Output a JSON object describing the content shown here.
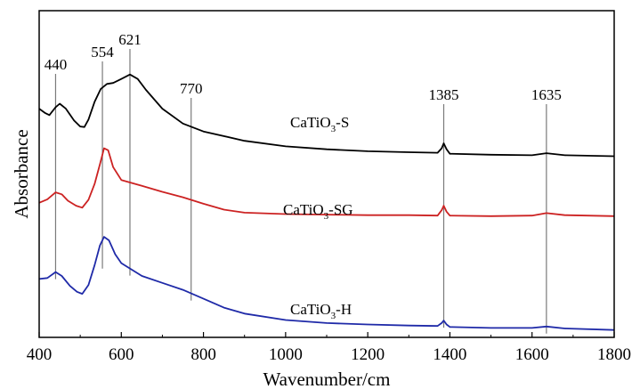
{
  "chart_data": {
    "type": "line",
    "title": "",
    "xlabel": "Wavenumber/cm",
    "ylabel": "Absorbance",
    "xlim": [
      400,
      1800
    ],
    "xticks": [
      400,
      600,
      800,
      1000,
      1200,
      1400,
      1600,
      1800
    ],
    "y_tick_labels": false,
    "grid": false,
    "legend": "none",
    "reference_lines": [
      {
        "x": 440,
        "label": "440"
      },
      {
        "x": 554,
        "label": "554"
      },
      {
        "x": 621,
        "label": "621"
      },
      {
        "x": 770,
        "label": "770"
      },
      {
        "x": 1385,
        "label": "1385"
      },
      {
        "x": 1635,
        "label": "1635"
      }
    ],
    "series": [
      {
        "label_base": "CaTiO",
        "label_sub": "3",
        "label_suffix": "-S",
        "color": "#000000",
        "points": [
          [
            400,
            9.6
          ],
          [
            415,
            9.15
          ],
          [
            425,
            8.95
          ],
          [
            440,
            9.75
          ],
          [
            450,
            10.1
          ],
          [
            465,
            9.6
          ],
          [
            485,
            8.4
          ],
          [
            500,
            7.8
          ],
          [
            510,
            7.75
          ],
          [
            520,
            8.5
          ],
          [
            535,
            10.3
          ],
          [
            550,
            11.6
          ],
          [
            565,
            12.1
          ],
          [
            580,
            12.2
          ],
          [
            600,
            12.6
          ],
          [
            621,
            13.05
          ],
          [
            640,
            12.6
          ],
          [
            660,
            11.5
          ],
          [
            700,
            9.6
          ],
          [
            750,
            8.1
          ],
          [
            800,
            7.3
          ],
          [
            900,
            6.35
          ],
          [
            1000,
            5.8
          ],
          [
            1100,
            5.5
          ],
          [
            1200,
            5.3
          ],
          [
            1300,
            5.2
          ],
          [
            1370,
            5.15
          ],
          [
            1380,
            5.6
          ],
          [
            1385,
            6.1
          ],
          [
            1392,
            5.5
          ],
          [
            1400,
            5.05
          ],
          [
            1500,
            4.95
          ],
          [
            1600,
            4.9
          ],
          [
            1635,
            5.1
          ],
          [
            1680,
            4.9
          ],
          [
            1800,
            4.8
          ]
        ]
      },
      {
        "label_base": "CaTiO",
        "label_sub": "3",
        "label_suffix": "-SG",
        "color": "#cc2222",
        "points": [
          [
            400,
            0.1
          ],
          [
            420,
            0.45
          ],
          [
            440,
            1.15
          ],
          [
            455,
            0.95
          ],
          [
            470,
            0.3
          ],
          [
            490,
            -0.2
          ],
          [
            505,
            -0.4
          ],
          [
            520,
            0.4
          ],
          [
            535,
            2.0
          ],
          [
            548,
            4.0
          ],
          [
            558,
            5.6
          ],
          [
            568,
            5.4
          ],
          [
            580,
            3.7
          ],
          [
            600,
            2.4
          ],
          [
            650,
            1.8
          ],
          [
            700,
            1.2
          ],
          [
            750,
            0.65
          ],
          [
            800,
            0.0
          ],
          [
            850,
            -0.6
          ],
          [
            900,
            -0.9
          ],
          [
            1000,
            -1.05
          ],
          [
            1100,
            -1.1
          ],
          [
            1200,
            -1.15
          ],
          [
            1300,
            -1.15
          ],
          [
            1370,
            -1.2
          ],
          [
            1380,
            -0.65
          ],
          [
            1385,
            -0.2
          ],
          [
            1392,
            -0.8
          ],
          [
            1400,
            -1.2
          ],
          [
            1500,
            -1.25
          ],
          [
            1600,
            -1.2
          ],
          [
            1635,
            -0.95
          ],
          [
            1680,
            -1.15
          ],
          [
            1800,
            -1.25
          ]
        ]
      },
      {
        "label_base": "CaTiO",
        "label_sub": "3",
        "label_suffix": "-H",
        "color": "#1f2aa8",
        "points": [
          [
            400,
            -7.6
          ],
          [
            420,
            -7.5
          ],
          [
            440,
            -6.9
          ],
          [
            455,
            -7.3
          ],
          [
            475,
            -8.3
          ],
          [
            492,
            -8.9
          ],
          [
            505,
            -9.1
          ],
          [
            520,
            -8.2
          ],
          [
            535,
            -6.2
          ],
          [
            548,
            -4.2
          ],
          [
            558,
            -3.35
          ],
          [
            570,
            -3.7
          ],
          [
            585,
            -5.1
          ],
          [
            600,
            -6.0
          ],
          [
            650,
            -7.3
          ],
          [
            700,
            -8.0
          ],
          [
            750,
            -8.7
          ],
          [
            800,
            -9.6
          ],
          [
            850,
            -10.5
          ],
          [
            900,
            -11.1
          ],
          [
            1000,
            -11.75
          ],
          [
            1100,
            -12.05
          ],
          [
            1200,
            -12.2
          ],
          [
            1300,
            -12.3
          ],
          [
            1370,
            -12.35
          ],
          [
            1380,
            -12.05
          ],
          [
            1385,
            -11.8
          ],
          [
            1392,
            -12.2
          ],
          [
            1400,
            -12.45
          ],
          [
            1500,
            -12.55
          ],
          [
            1600,
            -12.55
          ],
          [
            1635,
            -12.4
          ],
          [
            1680,
            -12.6
          ],
          [
            1800,
            -12.75
          ]
        ]
      }
    ]
  }
}
